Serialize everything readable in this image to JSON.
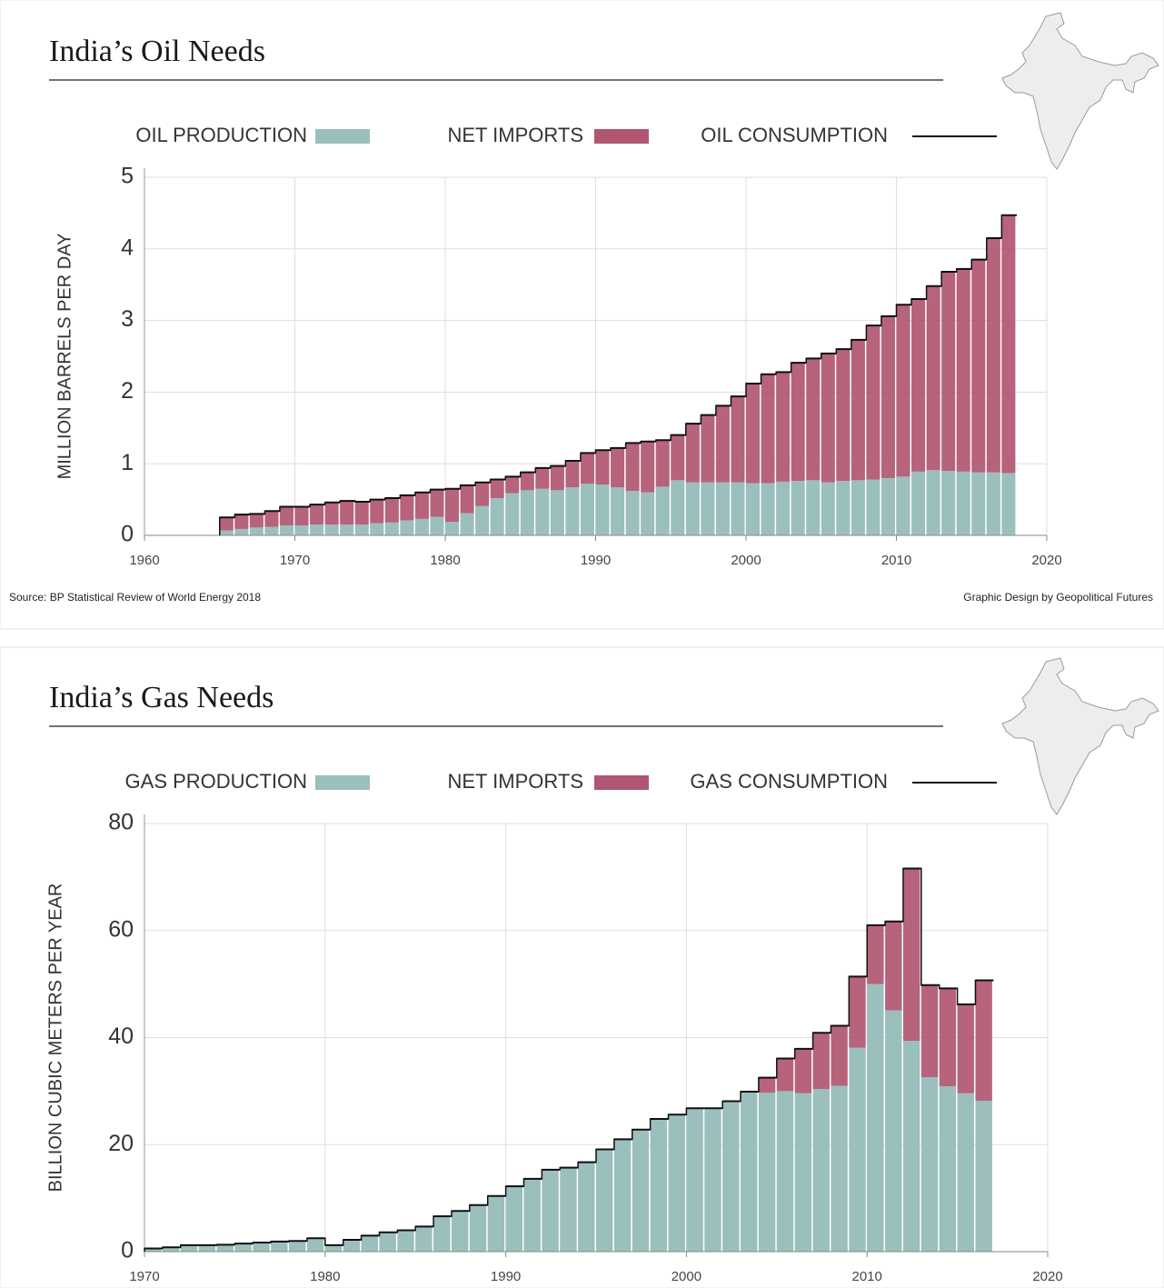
{
  "chart_data": [
    {
      "type": "bar",
      "stacked": true,
      "title": "India’s Oil Needs",
      "ylabel": "MILLION BARRELS PER DAY",
      "x": [
        1965,
        1966,
        1967,
        1968,
        1969,
        1970,
        1971,
        1972,
        1973,
        1974,
        1975,
        1976,
        1977,
        1978,
        1979,
        1980,
        1981,
        1982,
        1983,
        1984,
        1985,
        1986,
        1987,
        1988,
        1989,
        1990,
        1991,
        1992,
        1993,
        1994,
        1995,
        1996,
        1997,
        1998,
        1999,
        2000,
        2001,
        2002,
        2003,
        2004,
        2005,
        2006,
        2007,
        2008,
        2009,
        2010,
        2011,
        2012,
        2013,
        2014,
        2015,
        2016,
        2017
      ],
      "series": [
        {
          "name": "OIL PRODUCTION",
          "color": "#9bbfbc",
          "values": [
            0.07,
            0.09,
            0.11,
            0.12,
            0.14,
            0.14,
            0.15,
            0.15,
            0.15,
            0.15,
            0.17,
            0.18,
            0.21,
            0.23,
            0.26,
            0.19,
            0.31,
            0.41,
            0.52,
            0.59,
            0.63,
            0.65,
            0.63,
            0.67,
            0.72,
            0.71,
            0.67,
            0.62,
            0.6,
            0.68,
            0.77,
            0.74,
            0.74,
            0.74,
            0.74,
            0.73,
            0.73,
            0.75,
            0.76,
            0.77,
            0.74,
            0.76,
            0.77,
            0.78,
            0.8,
            0.82,
            0.89,
            0.91,
            0.9,
            0.89,
            0.88,
            0.88,
            0.87
          ]
        },
        {
          "name": "NET IMPORTS",
          "color": "#b05670",
          "values": [
            0.18,
            0.2,
            0.19,
            0.22,
            0.26,
            0.26,
            0.28,
            0.31,
            0.33,
            0.32,
            0.33,
            0.34,
            0.35,
            0.37,
            0.38,
            0.46,
            0.39,
            0.33,
            0.26,
            0.23,
            0.25,
            0.29,
            0.34,
            0.37,
            0.43,
            0.48,
            0.55,
            0.67,
            0.71,
            0.65,
            0.63,
            0.82,
            0.94,
            1.07,
            1.2,
            1.39,
            1.52,
            1.53,
            1.65,
            1.7,
            1.8,
            1.84,
            1.96,
            2.15,
            2.26,
            2.4,
            2.41,
            2.57,
            2.78,
            2.83,
            2.97,
            3.27,
            3.6
          ]
        },
        {
          "name": "OIL CONSUMPTION",
          "color": "#111111",
          "type": "step",
          "values": [
            0.25,
            0.29,
            0.3,
            0.34,
            0.4,
            0.4,
            0.43,
            0.46,
            0.48,
            0.47,
            0.5,
            0.52,
            0.56,
            0.6,
            0.64,
            0.65,
            0.7,
            0.74,
            0.78,
            0.82,
            0.88,
            0.94,
            0.97,
            1.04,
            1.15,
            1.19,
            1.22,
            1.29,
            1.31,
            1.33,
            1.4,
            1.56,
            1.68,
            1.81,
            1.94,
            2.12,
            2.25,
            2.28,
            2.41,
            2.47,
            2.54,
            2.6,
            2.73,
            2.93,
            3.06,
            3.22,
            3.3,
            3.48,
            3.68,
            3.72,
            3.85,
            4.15,
            4.47
          ]
        }
      ],
      "xlim": [
        1960,
        2020
      ],
      "xticks": [
        1960,
        1970,
        1980,
        1990,
        2000,
        2010,
        2020
      ],
      "ylim": [
        0,
        5
      ],
      "yticks": [
        0,
        1,
        2,
        3,
        4,
        5
      ],
      "grid": true
    },
    {
      "type": "bar",
      "stacked": true,
      "title": "India’s Gas Needs",
      "ylabel": "BILLION CUBIC METERS PER YEAR",
      "x": [
        1970,
        1971,
        1972,
        1973,
        1974,
        1975,
        1976,
        1977,
        1978,
        1979,
        1980,
        1981,
        1982,
        1983,
        1984,
        1985,
        1986,
        1987,
        1988,
        1989,
        1990,
        1991,
        1992,
        1993,
        1994,
        1995,
        1996,
        1997,
        1998,
        1999,
        2000,
        2001,
        2002,
        2003,
        2004,
        2005,
        2006,
        2007,
        2008,
        2009,
        2010,
        2011,
        2012,
        2013,
        2014,
        2015,
        2016
      ],
      "series": [
        {
          "name": "GAS PRODUCTION",
          "color": "#9bbfbc",
          "values": [
            0.6,
            0.8,
            1.2,
            1.2,
            1.3,
            1.5,
            1.7,
            1.9,
            2.0,
            2.5,
            1.2,
            2.2,
            3.0,
            3.6,
            4.0,
            4.7,
            6.6,
            7.6,
            8.7,
            10.4,
            12.2,
            13.6,
            15.3,
            15.7,
            16.7,
            19.1,
            21.0,
            22.8,
            24.8,
            25.6,
            26.8,
            26.8,
            28.1,
            29.9,
            29.7,
            30.0,
            29.6,
            30.4,
            31.0,
            38.1,
            50.0,
            45.1,
            39.4,
            32.6,
            30.9,
            29.6,
            28.2
          ]
        },
        {
          "name": "NET IMPORTS",
          "color": "#b05670",
          "values": [
            0,
            0,
            0,
            0,
            0,
            0,
            0,
            0,
            0,
            0,
            0,
            0,
            0,
            0,
            0,
            0,
            0,
            0,
            0,
            0,
            0,
            0,
            0,
            0,
            0,
            0,
            0,
            0,
            0,
            0,
            0,
            0,
            0,
            0,
            2.8,
            6.1,
            8.3,
            10.5,
            11.2,
            13.3,
            11.0,
            16.6,
            32.2,
            17.2,
            18.3,
            16.6,
            22.5
          ]
        },
        {
          "name": "GAS CONSUMPTION",
          "color": "#111111",
          "type": "step",
          "values": [
            0.6,
            0.8,
            1.2,
            1.2,
            1.3,
            1.5,
            1.7,
            1.9,
            2.0,
            2.5,
            1.2,
            2.2,
            3.0,
            3.6,
            4.0,
            4.7,
            6.6,
            7.6,
            8.7,
            10.4,
            12.2,
            13.6,
            15.3,
            15.7,
            16.7,
            19.1,
            21.0,
            22.8,
            24.8,
            25.6,
            26.8,
            26.8,
            28.1,
            29.9,
            32.5,
            36.1,
            37.9,
            40.9,
            42.2,
            51.4,
            61.0,
            61.7,
            71.6,
            49.8,
            49.2,
            46.2,
            50.7
          ]
        }
      ],
      "xlim": [
        1970,
        2020
      ],
      "xticks": [
        1970,
        1980,
        1990,
        2000,
        2010,
        2020
      ],
      "ylim": [
        0,
        80
      ],
      "yticks": [
        0,
        20,
        40,
        60,
        80
      ],
      "grid": true
    }
  ],
  "footer": {
    "source": "Source: BP Statistical Review of World Energy 2018",
    "credit": "Graphic Design by Geopolitical Futures"
  }
}
